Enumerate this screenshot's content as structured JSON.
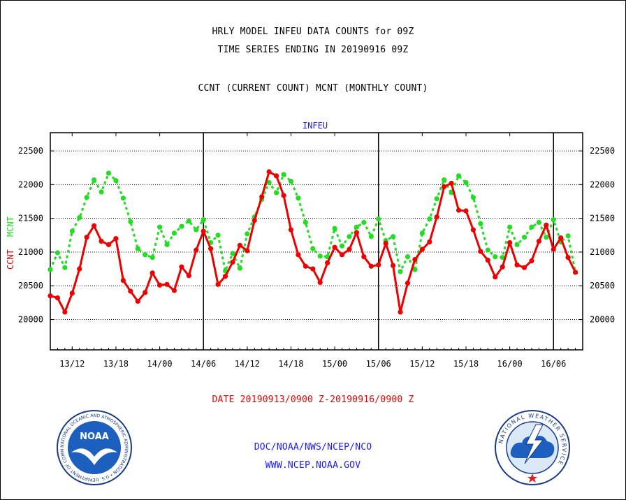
{
  "header": {
    "line1": "HRLY MODEL INFEU DATA COUNTS for 09Z",
    "line2": "TIME SERIES ENDING IN 20190916 09Z",
    "line3": "CCNT (CURRENT COUNT) MCNT (MONTHLY COUNT)"
  },
  "footer": {
    "date_range": "DATE 20190913/0900 Z-20190916/0900 Z",
    "org": "DOC/NOAA/NWS/NCEP/NCO",
    "url": "WWW.NCEP.NOAA.GOV"
  },
  "logos": {
    "noaa_text": "NOAA",
    "noaa_ring": "NATIONAL OCEANIC AND ATMOSPHERIC ADMINISTRATION • U.S. DEPARTMENT OF COMMERCE",
    "nws_ring": "NATIONAL WEATHER SERVICE"
  },
  "colors": {
    "ccnt": "#ee0000",
    "mcnt": "#22dd22",
    "title_blue": "#1a1aff"
  },
  "chart_data": {
    "type": "line",
    "title": "INFEU",
    "ylabel_left_1": "CCNT",
    "ylabel_left_2": "MCNT",
    "ylim": [
      19550,
      22770
    ],
    "yticks": [
      20000,
      20500,
      21000,
      21500,
      22000,
      22500
    ],
    "xlim": [
      0,
      73
    ],
    "xticks": [
      {
        "x": 3,
        "label": "13/12"
      },
      {
        "x": 9,
        "label": "13/18"
      },
      {
        "x": 15,
        "label": "14/00"
      },
      {
        "x": 21,
        "label": "14/06"
      },
      {
        "x": 27,
        "label": "14/12"
      },
      {
        "x": 33,
        "label": "14/18"
      },
      {
        "x": 39,
        "label": "15/00"
      },
      {
        "x": 45,
        "label": "15/06"
      },
      {
        "x": 51,
        "label": "15/12"
      },
      {
        "x": 57,
        "label": "15/18"
      },
      {
        "x": 63,
        "label": "16/00"
      },
      {
        "x": 69,
        "label": "16/06"
      }
    ],
    "day_lines": [
      21,
      45,
      69
    ],
    "grid": true,
    "series": [
      {
        "name": "CCNT",
        "values": [
          20350,
          20320,
          20110,
          20390,
          20750,
          21220,
          21390,
          21160,
          21110,
          21200,
          20580,
          20420,
          20270,
          20400,
          20690,
          20510,
          20520,
          20430,
          20780,
          20650,
          21030,
          21310,
          21050,
          20520,
          20640,
          20850,
          21100,
          21020,
          21470,
          21820,
          22190,
          22130,
          21840,
          21330,
          20960,
          20790,
          20750,
          20550,
          20840,
          21070,
          20960,
          21040,
          21290,
          20930,
          20790,
          20810,
          21130,
          20800,
          20110,
          20540,
          20890,
          21040,
          21150,
          21520,
          21970,
          22020,
          21620,
          21610,
          21330,
          21010,
          20880,
          20630,
          20780,
          21140,
          20810,
          20770,
          20870,
          21160,
          21400,
          21040,
          21210,
          20920,
          20700
        ]
      },
      {
        "name": "MCNT",
        "values": [
          20740,
          20990,
          20770,
          21310,
          21510,
          21810,
          22070,
          21890,
          22170,
          22060,
          21800,
          21450,
          21050,
          20960,
          20920,
          21370,
          21110,
          21280,
          21380,
          21460,
          21330,
          21480,
          21140,
          21250,
          20720,
          20980,
          20760,
          21270,
          21520,
          21780,
          22030,
          21880,
          22150,
          22050,
          21800,
          21440,
          21050,
          20940,
          20930,
          21350,
          21090,
          21230,
          21370,
          21440,
          21230,
          21490,
          21170,
          21230,
          20710,
          20930,
          20740,
          21280,
          21490,
          21790,
          22070,
          21880,
          22130,
          22030,
          21810,
          21420,
          21030,
          20930,
          20920,
          21370,
          21110,
          21220,
          21370,
          21440,
          21220,
          21480,
          21150,
          21240,
          20700
        ]
      }
    ]
  }
}
